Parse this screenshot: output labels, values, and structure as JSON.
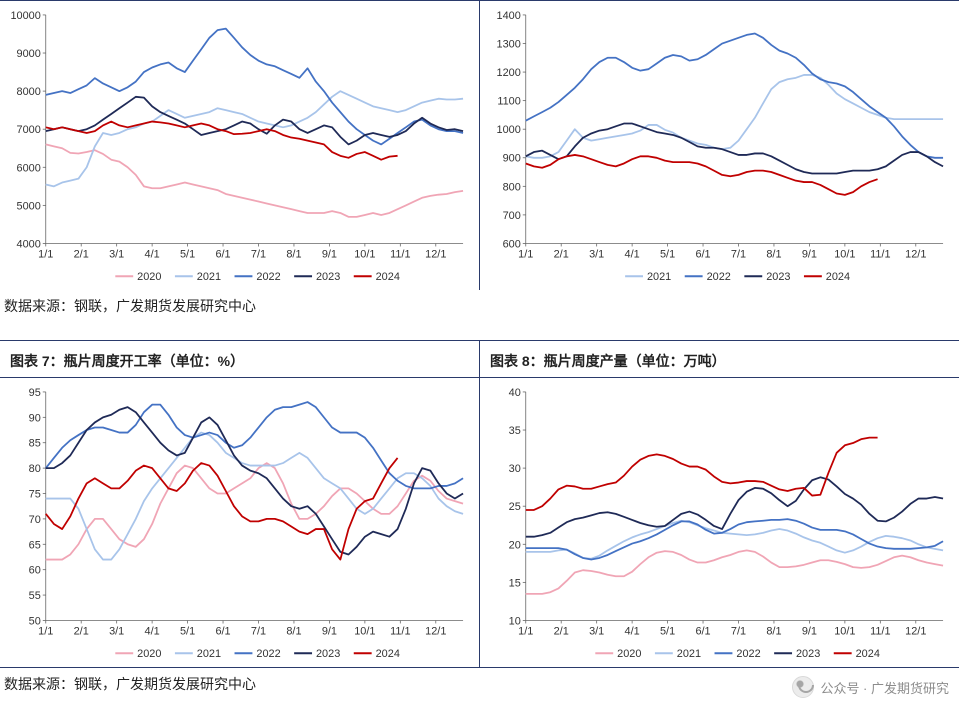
{
  "source_text": "数据来源：钢联，广发期货发展研究中心",
  "watermark": "公众号 · 广发期货研究",
  "months": [
    "1/1",
    "2/1",
    "3/1",
    "4/1",
    "5/1",
    "6/1",
    "7/1",
    "8/1",
    "9/1",
    "10/1",
    "11/1",
    "12/1"
  ],
  "series_colors": {
    "2020": "#f0a5b5",
    "2021": "#a8c4ea",
    "2022": "#4472c4",
    "2023": "#1f2a57",
    "2024": "#c00000"
  },
  "line_width": 1.8,
  "grid_color": "#e6e6e6",
  "axis_color": "#666666",
  "chart5": {
    "title": "",
    "ylim": [
      4000,
      10000
    ],
    "ystep": 1000,
    "years": [
      "2020",
      "2021",
      "2022",
      "2023",
      "2024"
    ],
    "data": {
      "2020": [
        6600,
        6550,
        6500,
        6380,
        6360,
        6400,
        6450,
        6350,
        6200,
        6150,
        6000,
        5800,
        5500,
        5450,
        5450,
        5500,
        5550,
        5600,
        5550,
        5500,
        5450,
        5400,
        5300,
        5250,
        5200,
        5150,
        5100,
        5050,
        5000,
        4950,
        4900,
        4850,
        4800,
        4800,
        4800,
        4850,
        4800,
        4700,
        4700,
        4750,
        4800,
        4750,
        4800,
        4900,
        5000,
        5100,
        5200,
        5250,
        5280,
        5300,
        5350,
        5380
      ],
      "2021": [
        5550,
        5500,
        5600,
        5650,
        5700,
        6000,
        6550,
        6900,
        6850,
        6900,
        7000,
        7050,
        7150,
        7200,
        7350,
        7500,
        7400,
        7300,
        7350,
        7400,
        7450,
        7550,
        7500,
        7450,
        7400,
        7300,
        7200,
        7150,
        7100,
        7050,
        7100,
        7200,
        7300,
        7450,
        7650,
        7850,
        8000,
        7900,
        7800,
        7700,
        7600,
        7550,
        7500,
        7450,
        7500,
        7600,
        7700,
        7750,
        7800,
        7780,
        7780,
        7800
      ],
      "2022": [
        7900,
        7950,
        8000,
        7950,
        8050,
        8150,
        8340,
        8200,
        8100,
        8000,
        8100,
        8250,
        8500,
        8620,
        8700,
        8750,
        8600,
        8500,
        8800,
        9100,
        9400,
        9600,
        9640,
        9400,
        9150,
        8950,
        8800,
        8700,
        8650,
        8550,
        8450,
        8350,
        8600,
        8250,
        8000,
        7700,
        7450,
        7200,
        7000,
        6850,
        6700,
        6600,
        6750,
        6900,
        7050,
        7200,
        7250,
        7100,
        7000,
        6950,
        6950,
        6900
      ],
      "2023": [
        6950,
        7000,
        7050,
        7000,
        6950,
        7000,
        7100,
        7250,
        7400,
        7550,
        7700,
        7850,
        7830,
        7600,
        7450,
        7350,
        7250,
        7150,
        7000,
        6850,
        6900,
        6950,
        7000,
        7100,
        7200,
        7150,
        7000,
        6880,
        7100,
        7250,
        7200,
        7000,
        6900,
        7000,
        7100,
        7050,
        6800,
        6600,
        6700,
        6850,
        6900,
        6850,
        6800,
        6850,
        6950,
        7150,
        7300,
        7150,
        7050,
        6980,
        7000,
        6950
      ],
      "2024": [
        7050,
        7000,
        7050,
        7000,
        6950,
        6900,
        6950,
        7100,
        7200,
        7100,
        7050,
        7100,
        7150,
        7200,
        7180,
        7150,
        7100,
        7050,
        7100,
        7150,
        7100,
        7000,
        6950,
        6870,
        6880,
        6900,
        6950,
        7000,
        6950,
        6850,
        6780,
        6750,
        6700,
        6650,
        6600,
        6400,
        6300,
        6250,
        6350,
        6400,
        6300,
        6200,
        6280,
        6300
      ]
    }
  },
  "chart6": {
    "title": "",
    "ylim": [
      600,
      1400
    ],
    "ystep": 100,
    "years": [
      "2021",
      "2022",
      "2023",
      "2024"
    ],
    "data": {
      "2021": [
        905,
        900,
        900,
        905,
        920,
        960,
        1000,
        970,
        960,
        965,
        970,
        975,
        980,
        985,
        995,
        1015,
        1015,
        998,
        988,
        970,
        960,
        950,
        945,
        935,
        930,
        935,
        960,
        1000,
        1040,
        1090,
        1140,
        1165,
        1175,
        1180,
        1190,
        1190,
        1180,
        1155,
        1125,
        1105,
        1090,
        1075,
        1060,
        1050,
        1040,
        1035,
        1035,
        1035,
        1035,
        1035,
        1035,
        1035
      ],
      "2022": [
        1030,
        1045,
        1060,
        1075,
        1095,
        1120,
        1145,
        1175,
        1210,
        1235,
        1250,
        1250,
        1235,
        1215,
        1205,
        1210,
        1230,
        1250,
        1260,
        1255,
        1240,
        1245,
        1260,
        1280,
        1300,
        1310,
        1320,
        1330,
        1335,
        1320,
        1295,
        1275,
        1265,
        1250,
        1225,
        1195,
        1175,
        1165,
        1160,
        1150,
        1130,
        1105,
        1080,
        1060,
        1040,
        1010,
        975,
        945,
        920,
        905,
        900,
        900
      ],
      "2023": [
        905,
        920,
        925,
        910,
        895,
        905,
        940,
        970,
        985,
        995,
        1000,
        1010,
        1020,
        1020,
        1010,
        1000,
        990,
        985,
        980,
        970,
        955,
        940,
        935,
        935,
        930,
        920,
        910,
        910,
        915,
        915,
        905,
        890,
        875,
        860,
        850,
        845,
        845,
        845,
        845,
        850,
        855,
        855,
        855,
        860,
        870,
        890,
        910,
        920,
        920,
        905,
        885,
        870
      ],
      "2024": [
        880,
        870,
        865,
        875,
        895,
        905,
        910,
        905,
        895,
        885,
        875,
        870,
        880,
        895,
        905,
        905,
        900,
        890,
        885,
        885,
        885,
        880,
        870,
        855,
        840,
        835,
        840,
        850,
        855,
        855,
        850,
        840,
        830,
        820,
        815,
        815,
        805,
        790,
        775,
        770,
        780,
        800,
        815,
        825
      ]
    }
  },
  "chart7": {
    "title": "图表 7：瓶片周度开工率（单位：%）",
    "ylim": [
      50,
      95
    ],
    "ystep": 5,
    "years": [
      "2020",
      "2021",
      "2022",
      "2023",
      "2024"
    ],
    "data": {
      "2020": [
        62,
        62,
        62,
        63,
        65,
        68,
        70,
        70,
        68,
        66,
        65,
        64.5,
        66,
        69,
        73,
        76,
        79,
        80.5,
        80,
        78,
        76,
        75,
        75,
        76,
        77,
        78,
        80,
        81,
        80,
        77,
        73,
        70,
        70,
        71,
        72.5,
        74.5,
        76,
        76,
        75,
        73.5,
        72,
        71,
        71,
        72.5,
        75,
        77.5,
        78.5,
        77.5,
        75.5,
        74,
        73.5,
        73
      ],
      "2021": [
        74,
        74,
        74,
        74,
        72,
        68,
        64,
        62,
        62,
        64,
        67,
        70,
        73.5,
        76,
        78,
        80,
        82,
        84,
        86,
        87,
        86.5,
        85,
        83,
        82,
        81,
        80.5,
        80.5,
        80.5,
        80.5,
        81,
        82,
        83,
        82,
        80,
        78,
        77,
        76,
        74,
        72,
        71,
        72,
        74,
        76,
        78,
        79,
        79,
        78,
        76.5,
        74,
        72.5,
        71.5,
        71
      ],
      "2022": [
        80,
        82,
        84,
        85.5,
        86.5,
        87.5,
        88,
        88,
        87.5,
        87,
        87,
        88.5,
        91,
        92.5,
        92.5,
        90.5,
        88,
        86.5,
        86,
        86.5,
        87,
        86.5,
        85,
        84,
        84.5,
        86,
        88,
        90,
        91.5,
        92,
        92,
        92.5,
        93,
        92,
        90,
        88,
        87,
        87,
        87,
        86,
        84,
        81.5,
        79,
        77.5,
        76.5,
        76,
        76,
        76,
        76.5,
        76.5,
        77,
        78
      ],
      "2023": [
        80,
        80,
        81,
        82.5,
        85,
        87.5,
        89,
        90,
        90.5,
        91.5,
        92,
        91,
        89,
        87,
        85,
        83.5,
        82.5,
        83,
        86,
        89,
        90,
        88.5,
        85.5,
        82.5,
        80.5,
        79.5,
        79,
        78,
        76,
        74,
        72.5,
        72,
        72.5,
        71,
        68.5,
        66,
        63.5,
        63,
        64.5,
        66.5,
        67.5,
        67,
        66.5,
        68,
        72,
        77,
        80,
        79.5,
        77,
        75,
        74,
        75
      ],
      "2024": [
        71,
        69,
        68,
        70.5,
        74,
        77,
        78,
        77,
        76,
        76,
        77.5,
        79.5,
        80.5,
        80,
        78,
        76,
        75.5,
        77,
        79.5,
        81,
        80.5,
        78.5,
        75.5,
        72.5,
        70.5,
        69.5,
        69.5,
        70,
        70,
        69.5,
        68.5,
        67.5,
        67,
        68,
        68,
        64,
        62,
        68,
        72,
        73.5,
        74,
        77,
        80,
        82
      ]
    }
  },
  "chart8": {
    "title": "图表 8：瓶片周度产量（单位：万吨）",
    "ylim": [
      10,
      40
    ],
    "ystep": 5,
    "years": [
      "2020",
      "2021",
      "2022",
      "2023",
      "2024"
    ],
    "data": {
      "2020": [
        13.5,
        13.5,
        13.5,
        13.7,
        14.2,
        15.2,
        16.3,
        16.6,
        16.5,
        16.3,
        16,
        15.8,
        15.8,
        16.4,
        17.4,
        18.3,
        18.9,
        19.1,
        19,
        18.6,
        18,
        17.6,
        17.6,
        17.9,
        18.3,
        18.6,
        19,
        19.2,
        19,
        18.4,
        17.6,
        17,
        17,
        17.1,
        17.3,
        17.6,
        17.9,
        17.9,
        17.7,
        17.4,
        17,
        16.9,
        17,
        17.3,
        17.8,
        18.3,
        18.5,
        18.3,
        17.9,
        17.6,
        17.4,
        17.2
      ],
      "2021": [
        19,
        19,
        19,
        19,
        19.2,
        19.3,
        18.8,
        18.2,
        18.1,
        18.5,
        19.2,
        19.8,
        20.4,
        20.9,
        21.3,
        21.6,
        22,
        22.4,
        22.8,
        23.1,
        22.9,
        22.5,
        22.1,
        21.8,
        21.5,
        21.4,
        21.3,
        21.2,
        21.3,
        21.5,
        21.8,
        22,
        21.8,
        21.4,
        20.9,
        20.5,
        20.2,
        19.7,
        19.2,
        18.9,
        19.2,
        19.7,
        20.3,
        20.8,
        21.1,
        21,
        20.8,
        20.5,
        20,
        19.6,
        19.4,
        19.2
      ],
      "2022": [
        19.5,
        19.5,
        19.5,
        19.5,
        19.5,
        19.3,
        18.7,
        18.2,
        18,
        18.2,
        18.6,
        19.1,
        19.6,
        20.1,
        20.4,
        20.8,
        21.3,
        21.9,
        22.5,
        23,
        23,
        22.6,
        21.9,
        21.4,
        21.5,
        22,
        22.6,
        22.9,
        23,
        23.1,
        23.2,
        23.2,
        23.3,
        23.1,
        22.7,
        22.2,
        21.9,
        21.9,
        21.9,
        21.7,
        21.3,
        20.7,
        20.1,
        19.7,
        19.5,
        19.4,
        19.4,
        19.4,
        19.5,
        19.6,
        19.8,
        20.4
      ],
      "2023": [
        21,
        21,
        21.2,
        21.5,
        22.2,
        22.9,
        23.3,
        23.5,
        23.8,
        24.1,
        24.2,
        24,
        23.6,
        23.2,
        22.8,
        22.5,
        22.3,
        22.4,
        23.2,
        24,
        24.3,
        23.9,
        23.2,
        22.4,
        22,
        24,
        25.8,
        26.9,
        27.4,
        27.3,
        26.7,
        25.8,
        25,
        25.7,
        27.2,
        28.4,
        28.8,
        28.5,
        27.6,
        26.6,
        26,
        25.2,
        24,
        23.1,
        23,
        23.5,
        24.3,
        25.3,
        26,
        26,
        26.2,
        26
      ],
      "2024": [
        24.5,
        24.5,
        25,
        26,
        27.2,
        27.7,
        27.6,
        27.3,
        27.3,
        27.6,
        27.9,
        28.1,
        29,
        30.2,
        31.1,
        31.6,
        31.8,
        31.6,
        31.2,
        30.6,
        30.2,
        30.2,
        29.8,
        28.9,
        28.2,
        28,
        28.1,
        28.3,
        28.3,
        28.2,
        27.7,
        27.2,
        27,
        27.3,
        27.4,
        26.4,
        26.5,
        29.4,
        32,
        33,
        33.3,
        33.8,
        34,
        34
      ]
    }
  }
}
